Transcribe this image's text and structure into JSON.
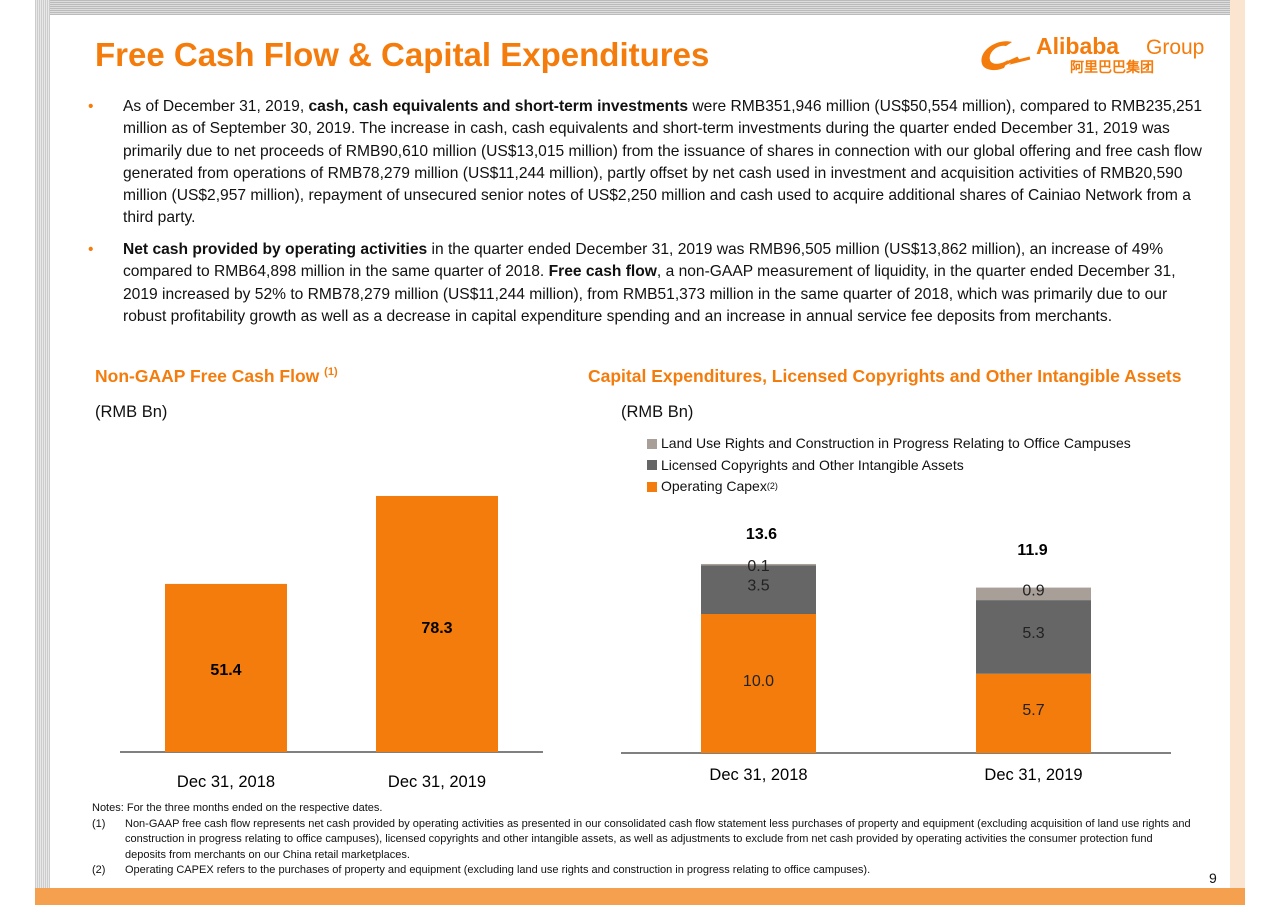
{
  "title": "Free Cash Flow & Capital Expenditures",
  "logo": {
    "text": "Alibaba Group",
    "chinese": "阿里巴巴集团",
    "color": "#f47c0c"
  },
  "bullets": [
    {
      "pre": "As of December 31, 2019, ",
      "bold": "cash, cash equivalents and short-term investments",
      "post": " were RMB351,946 million (US$50,554 million), compared to RMB235,251 million as of September 30, 2019. The increase in cash, cash equivalents and short-term investments during the quarter ended December 31, 2019 was primarily due to net proceeds of RMB90,610 million (US$13,015 million) from the issuance of shares in connection with our global offering and free cash flow generated from operations of RMB78,279 million (US$11,244 million), partly offset by net cash used in investment and acquisition activities of RMB20,590 million (US$2,957 million), repayment of unsecured senior notes of US$2,250 million and cash used to acquire additional shares of Cainiao Network from a third party."
    },
    {
      "bold": "Net cash provided by operating activities",
      "mid": " in the quarter ended December 31, 2019 was RMB96,505 million (US$13,862 million), an increase of 49% compared to RMB64,898 million in the same quarter of 2018.  ",
      "bold2": "Free cash flow",
      "post": ", a non-GAAP measurement of liquidity, in the quarter ended December 31, 2019 increased by 52% to RMB78,279 million (US$11,244 million), from RMB51,373 million in the same quarter of 2018, which was primarily due to our robust profitability growth as well as a decrease in capital expenditure spending and an increase in annual service fee deposits from merchants."
    }
  ],
  "colors": {
    "accent": "#f47c0c",
    "dark_grey": "#666666",
    "light_grey": "#a89f98"
  },
  "chart_data": [
    {
      "type": "bar",
      "title": "Non-GAAP Free Cash Flow",
      "title_sup": "(1)",
      "ylabel": "(RMB Bn)",
      "categories": [
        "Dec 31, 2018",
        "Dec 31, 2019"
      ],
      "values": [
        51.4,
        78.3
      ],
      "labels": [
        "51.4",
        "78.3"
      ],
      "color": "#f47c0c",
      "grid": false
    },
    {
      "type": "bar",
      "stacked": true,
      "title": "Capital Expenditures, Licensed Copyrights and Other Intangible Assets",
      "ylabel": "(RMB Bn)",
      "categories": [
        "Dec 31, 2018",
        "Dec 31, 2019"
      ],
      "legend_position": "top-left",
      "series": [
        {
          "name": "Operating Capex",
          "name_sup": "(2)",
          "values": [
            10.0,
            5.7
          ],
          "labels": [
            "10.0",
            "5.7"
          ],
          "color": "#f47c0c"
        },
        {
          "name": "Licensed Copyrights and Other Intangible Assets",
          "values": [
            3.5,
            5.3
          ],
          "labels": [
            "3.5",
            "5.3"
          ],
          "color": "#666666"
        },
        {
          "name": "Land Use Rights and Construction in Progress Relating to Office Campuses",
          "values": [
            0.1,
            0.9
          ],
          "labels": [
            "0.1",
            "0.9"
          ],
          "color": "#a89f98"
        }
      ],
      "totals": [
        "13.6",
        "11.9"
      ],
      "grid": false
    }
  ],
  "notes": {
    "header": "Notes: For the three months ended on the respective dates.",
    "items": [
      {
        "key": "(1)",
        "text": "Non-GAAP free cash flow represents net cash provided by operating activities as presented in our consolidated cash flow statement less purchases of property and equipment (excluding acquisition of land use rights and construction in progress relating to office campuses), licensed copyrights and other intangible assets, as well as adjustments to exclude from net cash provided by operating activities the consumer protection fund deposits from merchants on our China retail marketplaces."
      },
      {
        "key": "(2)",
        "text": "Operating CAPEX refers to the purchases of property and equipment (excluding land use rights and construction in progress relating to office campuses)."
      }
    ]
  },
  "page_number": "9"
}
